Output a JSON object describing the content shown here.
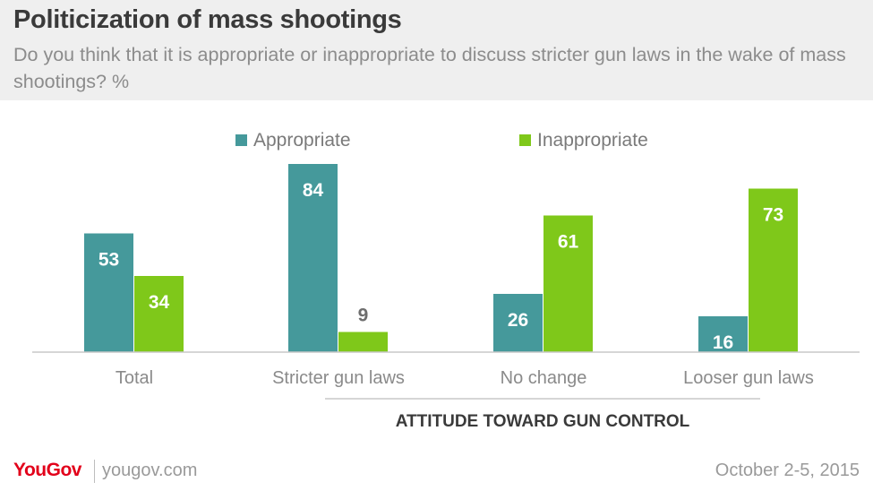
{
  "header": {
    "title": "Politicization of mass shootings",
    "subtitle": "Do you think that it is appropriate or inappropriate to discuss stricter gun laws in the wake of mass shootings? %"
  },
  "chart_data": {
    "type": "bar",
    "categories": [
      "Total",
      "Stricter gun laws",
      "No change",
      "Looser gun laws"
    ],
    "series": [
      {
        "name": "Appropriate",
        "values": [
          53,
          84,
          26,
          16
        ],
        "color": "#45999b"
      },
      {
        "name": "Inappropriate",
        "values": [
          34,
          9,
          61,
          73
        ],
        "color": "#7fc81a"
      }
    ],
    "group_label": "ATTITUDE TOWARD GUN CONTROL",
    "ylim": [
      0,
      100
    ],
    "legend_position": "top",
    "grid": false
  },
  "footer": {
    "brand": "YouGov",
    "site": "yougov.com",
    "date": "October 2-5, 2015"
  }
}
